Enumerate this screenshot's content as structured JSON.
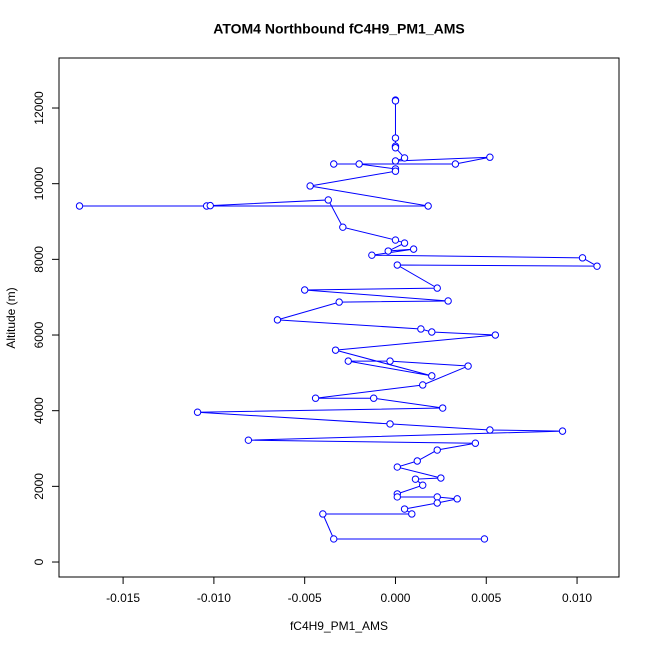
{
  "chart_data": {
    "type": "line",
    "title": "ATOM4 Northbound fC4H9_PM1_AMS",
    "x_label": "fC4H9_PM1_AMS",
    "y_label": "Altitude (m)",
    "color": "#0000ff",
    "markers": true,
    "grid": false,
    "xlim": [
      -0.01853,
      0.01231
    ],
    "ylim": [
      -396,
      13322
    ],
    "xticks": [
      -0.015,
      {
        "value": -0.01,
        "label": "-0.010"
      },
      -0.005,
      {
        "value": 0,
        "label": "0.000"
      },
      0.005,
      {
        "value": 0.01,
        "label": "0.010"
      }
    ],
    "yticks": [
      0,
      2000,
      4000,
      6000,
      8000,
      10000,
      12000
    ],
    "series": [
      {
        "name": "fC4H9_PM1_AMS",
        "x": [
          0,
          0,
          0,
          0,
          0,
          0.0005,
          0,
          0.0052,
          0.0033,
          -0.0034,
          -0.002,
          0,
          0,
          -0.0047,
          0.0018,
          -0.0174,
          -0.0104,
          -0.0102,
          -0.0037,
          -0.0029,
          0,
          0.0005,
          -0.0004,
          0.001,
          -0.0013,
          0.0103,
          0.0111,
          0.0001,
          0.0023,
          -0.005,
          0.0029,
          -0.0031,
          -0.0065,
          0.0014,
          0.002,
          0.0055,
          -0.0033,
          0.002,
          -0.0026,
          -0.0003,
          0.004,
          0.0015,
          -0.0044,
          -0.0012,
          0.0026,
          -0.0109,
          -0.0003,
          0.0052,
          0.0092,
          -0.0081,
          0.0044,
          0.0023,
          0.0012,
          0.0001,
          0.0025,
          0.0011,
          0.0015,
          0.0001,
          0.0001,
          0.0023,
          0.0034,
          0.0023,
          0.0005,
          0.0009,
          -0.004,
          -0.0034,
          0.0049
        ],
        "values": [
          12210,
          12190,
          11207,
          10990,
          10950,
          10680,
          10600,
          10700,
          10520,
          10520,
          10520,
          10390,
          10330,
          9940,
          9410,
          9410,
          9410,
          9420,
          9570,
          8850,
          8510,
          8430,
          8220,
          8270,
          8110,
          8040,
          7820,
          7850,
          7240,
          7190,
          6900,
          6870,
          6400,
          6160,
          6080,
          6000,
          5600,
          4920,
          5310,
          5310,
          5180,
          4680,
          4330,
          4330,
          4070,
          3960,
          3650,
          3490,
          3460,
          3220,
          3140,
          2960,
          2670,
          2510,
          2220,
          2190,
          2030,
          1800,
          1720,
          1720,
          1670,
          1560,
          1400,
          1270,
          1270,
          610,
          610
        ]
      }
    ]
  }
}
